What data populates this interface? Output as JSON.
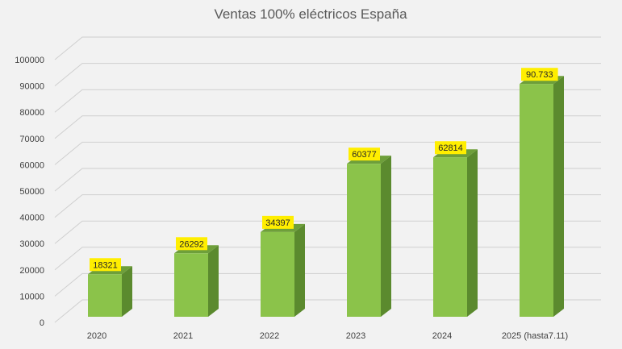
{
  "chart_data": {
    "type": "bar",
    "title": "Ventas 100% eléctricos España",
    "categories": [
      "2020",
      "2021",
      "2022",
      "2023",
      "2024",
      "2025 (hasta7.11)"
    ],
    "values": [
      18321,
      26292,
      34397,
      60377,
      62814,
      90733
    ],
    "data_labels": [
      "18321",
      "26292",
      "34397",
      "60377",
      "62814",
      "90.733"
    ],
    "ylim": [
      0,
      100000
    ],
    "yticks": [
      0,
      10000,
      20000,
      30000,
      40000,
      50000,
      60000,
      70000,
      80000,
      90000,
      100000
    ],
    "ytick_labels": [
      "0",
      "10000",
      "20000",
      "30000",
      "40000",
      "50000",
      "60000",
      "70000",
      "80000",
      "90000",
      "100000"
    ],
    "xlabel": "",
    "ylabel": "",
    "grid": true,
    "legend": "none",
    "style": "3d-column"
  },
  "colors": {
    "background": "#f2f2f2",
    "bar_front": "#8bc34a",
    "bar_side": "#5b8a2e",
    "bar_top": "#6e9f3a",
    "label_bg": "#ffee00",
    "grid": "#cfcfcf"
  }
}
